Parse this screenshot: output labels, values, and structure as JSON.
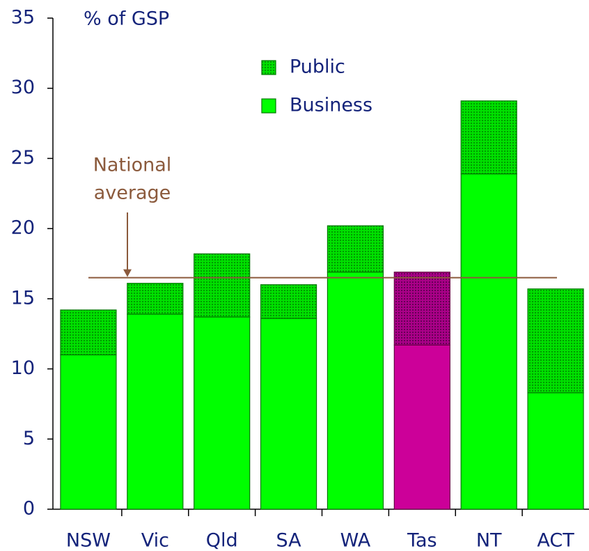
{
  "chart_data": {
    "type": "stacked_bar",
    "ylabel": "% of GSP",
    "categories": [
      "NSW",
      "Vic",
      "Qld",
      "SA",
      "WA",
      "Tas",
      "NT",
      "ACT"
    ],
    "series": [
      {
        "name": "Business",
        "color": "#00ff00",
        "highlight_color": "#cc0099",
        "values": [
          11.0,
          13.9,
          13.7,
          13.6,
          16.9,
          11.7,
          23.9,
          8.3
        ]
      },
      {
        "name": "Public",
        "color": "#00d000",
        "highlight_color": "#990077",
        "values": [
          3.2,
          2.2,
          4.5,
          2.4,
          3.3,
          5.2,
          5.2,
          7.4
        ]
      }
    ],
    "highlight_index": 5,
    "national_average": 16.5,
    "annotation": [
      "National",
      "average"
    ],
    "annotation_color": "#8b5a3c",
    "ylim": [
      0,
      35
    ],
    "yticks": [
      0,
      5,
      10,
      15,
      20,
      25,
      30,
      35
    ]
  }
}
